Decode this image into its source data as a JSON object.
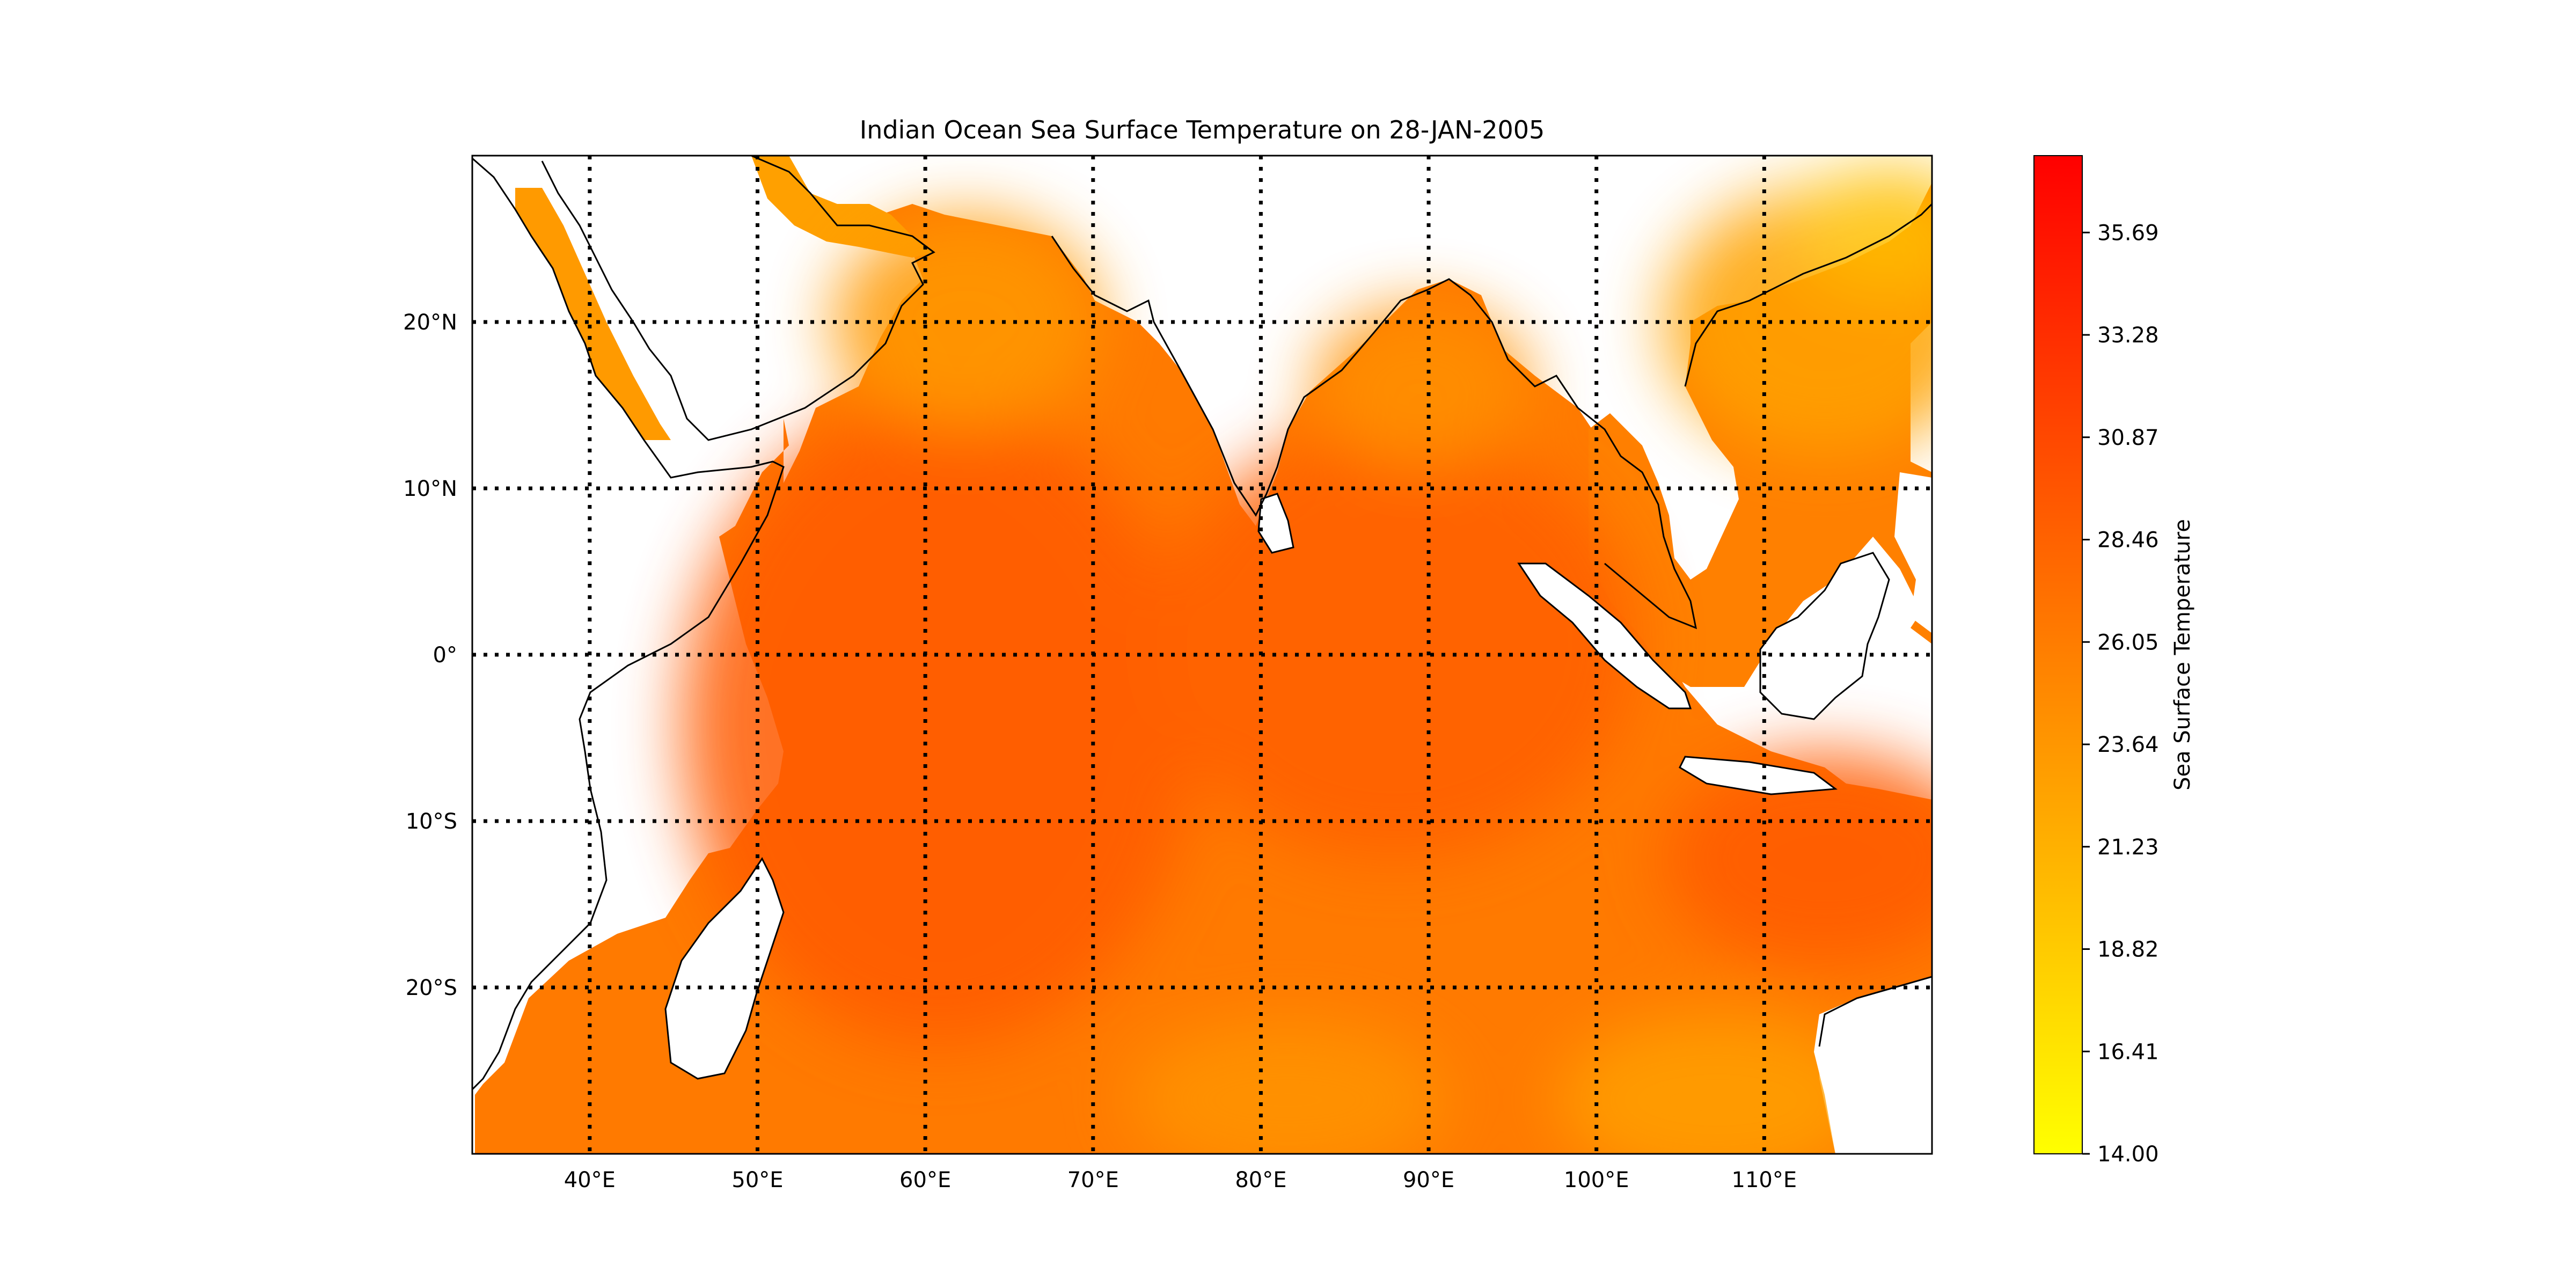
{
  "chart_data": {
    "type": "heatmap",
    "title": "Indian Ocean Sea Surface Temperature on 28-JAN-2005",
    "xlabel": "",
    "ylabel": "",
    "xlim": [
      33,
      120
    ],
    "ylim": [
      -30,
      30
    ],
    "grid": true,
    "x_ticks": [
      40,
      50,
      60,
      70,
      80,
      90,
      100,
      110
    ],
    "x_tick_labels": [
      "40°E",
      "50°E",
      "60°E",
      "70°E",
      "80°E",
      "90°E",
      "100°E",
      "110°E"
    ],
    "y_ticks": [
      20,
      10,
      0,
      -10,
      -20
    ],
    "y_tick_labels": [
      "20°N",
      "10°N",
      "0°",
      "10°S",
      "20°S"
    ],
    "colorbar": {
      "label": "Sea Surface Temperature",
      "min": 14.0,
      "max": 37.5,
      "ticks": [
        14.0,
        16.41,
        18.82,
        21.23,
        23.64,
        26.05,
        28.46,
        30.87,
        33.28,
        35.69
      ],
      "tick_labels": [
        "14.00",
        "16.41",
        "18.82",
        "21.23",
        "23.64",
        "26.05",
        "28.46",
        "30.87",
        "33.28",
        "35.69"
      ],
      "colormap": "autumn_r",
      "color_low": "#ffff00",
      "color_high": "#ff0000"
    },
    "colors": {
      "ocean_mid": "#ff7a00",
      "land": "#ffffff",
      "coastline": "#000000"
    }
  }
}
